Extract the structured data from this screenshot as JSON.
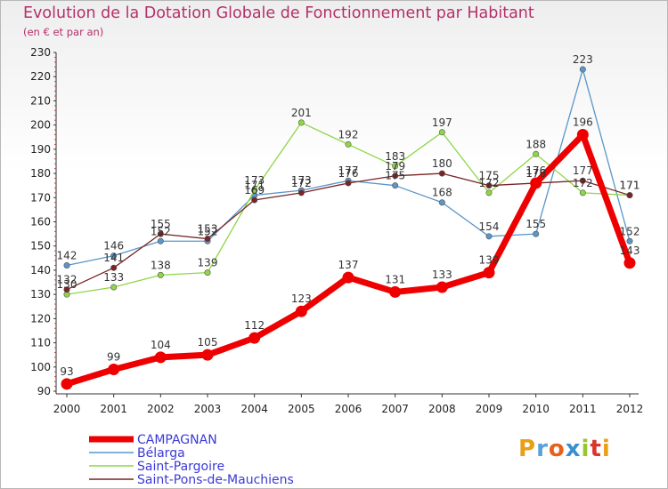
{
  "header": {
    "title": "Evolution de la Dotation Globale de Fonctionnement par Habitant",
    "subtitle": "(en € et par an)"
  },
  "logo": {
    "text": "Proxiti",
    "colors": [
      "#e8a019",
      "#5aa0d8",
      "#e8601a",
      "#3a8fd0",
      "#9bc52e",
      "#d8362a",
      "#e8a019"
    ]
  },
  "chart_data": {
    "type": "line",
    "title": "Evolution de la Dotation Globale de Fonctionnement par Habitant",
    "subtitle": "(en € et par an)",
    "x": [
      "2000",
      "2001",
      "2002",
      "2003",
      "2004",
      "2005",
      "2006",
      "2007",
      "2008",
      "2009",
      "2010",
      "2011",
      "2012"
    ],
    "ylim": [
      90,
      230
    ],
    "yticks": [
      90,
      100,
      110,
      120,
      130,
      140,
      150,
      160,
      170,
      180,
      190,
      200,
      210,
      220,
      230
    ],
    "grid": false,
    "legend_position": "bottom-left",
    "series": [
      {
        "name": "CAMPAGNAN",
        "color": "#ee0000",
        "values": [
          93,
          99,
          104,
          105,
          112,
          123,
          137,
          131,
          133,
          139,
          176,
          196,
          143
        ]
      },
      {
        "name": "Bélarga",
        "color": "#5a96c8",
        "values": [
          142,
          146,
          152,
          152,
          171,
          173,
          177,
          175,
          168,
          154,
          155,
          223,
          152
        ]
      },
      {
        "name": "Saint-Pargoire",
        "color": "#8fd646",
        "values": [
          130,
          133,
          138,
          139,
          173,
          201,
          192,
          183,
          197,
          172,
          188,
          172,
          171
        ]
      },
      {
        "name": "Saint-Pons-de-Mauchiens",
        "color": "#7a2424",
        "values": [
          132,
          141,
          155,
          153,
          169,
          172,
          176,
          179,
          180,
          175,
          176,
          177,
          171
        ]
      }
    ]
  }
}
